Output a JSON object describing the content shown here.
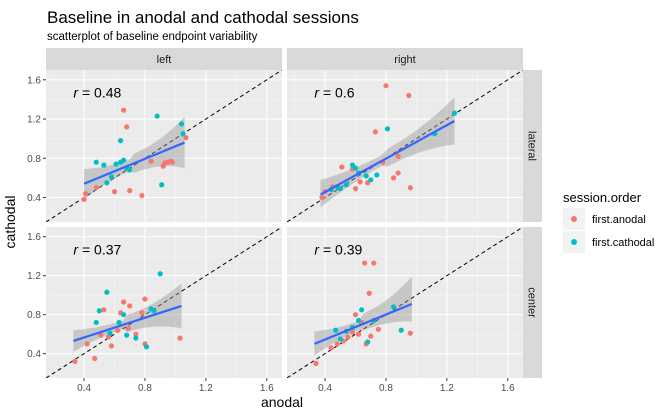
{
  "chart_data": {
    "type": "scatter",
    "title": "Baseline in anodal and cathodal sessions",
    "subtitle": "scatterplot of baseline endpoint variability",
    "xlabel": "anodal",
    "ylabel": "cathodal",
    "xlim": [
      0.15,
      1.7
    ],
    "ylim": [
      0.15,
      1.7
    ],
    "x_ticks": [
      "0.4",
      "0.8",
      "1.2",
      "1.6"
    ],
    "y_ticks": [
      "0.4",
      "0.8",
      "1.2",
      "1.6"
    ],
    "grid": true,
    "reference_line": "y = x (dashed)",
    "smooth": "linear fit with confidence band",
    "legend": {
      "title": "session.order",
      "position": "right",
      "entries": [
        {
          "label": "first.anodal",
          "color": "#F8766D"
        },
        {
          "label": "first.cathodal",
          "color": "#00BFC4"
        }
      ]
    },
    "col_strips": [
      "left",
      "right"
    ],
    "row_strips": [
      "lateral",
      "center"
    ],
    "panels": [
      {
        "col": "left",
        "row": "lateral",
        "r_label": "= 0.48",
        "fit": {
          "x": [
            0.4,
            1.06
          ],
          "y": [
            0.54,
            0.96
          ],
          "se_lo": [
            0.38,
            0.7
          ],
          "se_hi": [
            0.69,
            1.22
          ]
        },
        "points": [
          {
            "g": 0,
            "x": 0.4,
            "y": 0.38
          },
          {
            "g": 0,
            "x": 0.41,
            "y": 0.44
          },
          {
            "g": 0,
            "x": 0.48,
            "y": 0.5
          },
          {
            "g": 0,
            "x": 0.6,
            "y": 0.46
          },
          {
            "g": 0,
            "x": 0.66,
            "y": 1.29
          },
          {
            "g": 0,
            "x": 0.68,
            "y": 1.12
          },
          {
            "g": 0,
            "x": 0.7,
            "y": 0.47
          },
          {
            "g": 0,
            "x": 0.78,
            "y": 0.42
          },
          {
            "g": 0,
            "x": 0.84,
            "y": 0.77
          },
          {
            "g": 0,
            "x": 0.92,
            "y": 0.72
          },
          {
            "g": 0,
            "x": 0.95,
            "y": 0.76
          },
          {
            "g": 0,
            "x": 0.97,
            "y": 0.77
          },
          {
            "g": 0,
            "x": 0.98,
            "y": 0.76
          },
          {
            "g": 0,
            "x": 1.07,
            "y": 1.01
          },
          {
            "g": 0,
            "x": 0.93,
            "y": 0.75
          },
          {
            "g": 1,
            "x": 0.48,
            "y": 0.76
          },
          {
            "g": 1,
            "x": 0.53,
            "y": 0.73
          },
          {
            "g": 1,
            "x": 0.55,
            "y": 0.55
          },
          {
            "g": 1,
            "x": 0.58,
            "y": 0.61
          },
          {
            "g": 1,
            "x": 0.61,
            "y": 0.74
          },
          {
            "g": 1,
            "x": 0.64,
            "y": 0.76
          },
          {
            "g": 1,
            "x": 0.64,
            "y": 0.98
          },
          {
            "g": 1,
            "x": 0.66,
            "y": 0.78
          },
          {
            "g": 1,
            "x": 0.68,
            "y": 0.7
          },
          {
            "g": 1,
            "x": 0.7,
            "y": 0.68
          },
          {
            "g": 1,
            "x": 0.88,
            "y": 1.23
          },
          {
            "g": 1,
            "x": 0.91,
            "y": 0.53
          },
          {
            "g": 1,
            "x": 1.04,
            "y": 1.15
          },
          {
            "g": 1,
            "x": 1.05,
            "y": 1.05
          }
        ]
      },
      {
        "col": "right",
        "row": "lateral",
        "r_label": "= 0.6",
        "fit": {
          "x": [
            0.37,
            1.25
          ],
          "y": [
            0.43,
            1.18
          ],
          "se_lo": [
            0.3,
            0.94
          ],
          "se_hi": [
            0.58,
            1.42
          ]
        },
        "points": [
          {
            "g": 0,
            "x": 0.38,
            "y": 0.4
          },
          {
            "g": 0,
            "x": 0.4,
            "y": 0.46
          },
          {
            "g": 0,
            "x": 0.45,
            "y": 0.51
          },
          {
            "g": 0,
            "x": 0.51,
            "y": 0.71
          },
          {
            "g": 0,
            "x": 0.58,
            "y": 0.69
          },
          {
            "g": 0,
            "x": 0.6,
            "y": 0.49
          },
          {
            "g": 0,
            "x": 0.63,
            "y": 0.56
          },
          {
            "g": 0,
            "x": 0.68,
            "y": 0.55
          },
          {
            "g": 0,
            "x": 0.73,
            "y": 1.07
          },
          {
            "g": 0,
            "x": 0.78,
            "y": 0.76
          },
          {
            "g": 0,
            "x": 0.8,
            "y": 1.54
          },
          {
            "g": 0,
            "x": 0.85,
            "y": 0.6
          },
          {
            "g": 0,
            "x": 0.88,
            "y": 0.82
          },
          {
            "g": 0,
            "x": 0.88,
            "y": 0.65
          },
          {
            "g": 0,
            "x": 0.95,
            "y": 1.44
          },
          {
            "g": 0,
            "x": 0.96,
            "y": 0.5
          },
          {
            "g": 1,
            "x": 0.44,
            "y": 0.48
          },
          {
            "g": 1,
            "x": 0.48,
            "y": 0.51
          },
          {
            "g": 1,
            "x": 0.5,
            "y": 0.49
          },
          {
            "g": 1,
            "x": 0.54,
            "y": 0.53
          },
          {
            "g": 1,
            "x": 0.58,
            "y": 0.73
          },
          {
            "g": 1,
            "x": 0.6,
            "y": 0.7
          },
          {
            "g": 1,
            "x": 0.62,
            "y": 0.65
          },
          {
            "g": 1,
            "x": 0.67,
            "y": 0.62
          },
          {
            "g": 1,
            "x": 0.7,
            "y": 0.58
          },
          {
            "g": 1,
            "x": 0.74,
            "y": 0.63
          },
          {
            "g": 1,
            "x": 0.81,
            "y": 1.1
          },
          {
            "g": 1,
            "x": 1.12,
            "y": 1.05
          },
          {
            "g": 1,
            "x": 1.25,
            "y": 1.26
          }
        ]
      },
      {
        "col": "left",
        "row": "center",
        "r_label": "= 0.37",
        "fit": {
          "x": [
            0.33,
            1.04
          ],
          "y": [
            0.53,
            0.89
          ],
          "se_lo": [
            0.42,
            0.66
          ],
          "se_hi": [
            0.64,
            1.12
          ]
        },
        "points": [
          {
            "g": 0,
            "x": 0.34,
            "y": 0.32
          },
          {
            "g": 0,
            "x": 0.42,
            "y": 0.5
          },
          {
            "g": 0,
            "x": 0.47,
            "y": 0.35
          },
          {
            "g": 0,
            "x": 0.51,
            "y": 0.59
          },
          {
            "g": 0,
            "x": 0.53,
            "y": 0.85
          },
          {
            "g": 0,
            "x": 0.56,
            "y": 0.57
          },
          {
            "g": 0,
            "x": 0.58,
            "y": 0.48
          },
          {
            "g": 0,
            "x": 0.62,
            "y": 0.64
          },
          {
            "g": 0,
            "x": 0.64,
            "y": 0.82
          },
          {
            "g": 0,
            "x": 0.66,
            "y": 0.93
          },
          {
            "g": 0,
            "x": 0.69,
            "y": 0.66
          },
          {
            "g": 0,
            "x": 0.7,
            "y": 0.89
          },
          {
            "g": 0,
            "x": 0.74,
            "y": 0.6
          },
          {
            "g": 0,
            "x": 0.78,
            "y": 0.82
          },
          {
            "g": 0,
            "x": 0.8,
            "y": 0.96
          },
          {
            "g": 0,
            "x": 0.8,
            "y": 0.5
          },
          {
            "g": 0,
            "x": 1.03,
            "y": 0.56
          },
          {
            "g": 1,
            "x": 0.48,
            "y": 0.72
          },
          {
            "g": 1,
            "x": 0.5,
            "y": 0.84
          },
          {
            "g": 1,
            "x": 0.55,
            "y": 1.03
          },
          {
            "g": 1,
            "x": 0.57,
            "y": 0.61
          },
          {
            "g": 1,
            "x": 0.63,
            "y": 0.72
          },
          {
            "g": 1,
            "x": 0.66,
            "y": 0.8
          },
          {
            "g": 1,
            "x": 0.68,
            "y": 0.59
          },
          {
            "g": 1,
            "x": 0.74,
            "y": 0.56
          },
          {
            "g": 1,
            "x": 0.81,
            "y": 0.47
          },
          {
            "g": 1,
            "x": 0.86,
            "y": 0.84
          },
          {
            "g": 1,
            "x": 0.9,
            "y": 1.22
          },
          {
            "g": 1,
            "x": 0.84,
            "y": 0.86
          }
        ]
      },
      {
        "col": "right",
        "row": "center",
        "r_label": "= 0.39",
        "fit": {
          "x": [
            0.33,
            0.97
          ],
          "y": [
            0.5,
            0.91
          ],
          "se_lo": [
            0.38,
            0.73
          ],
          "se_hi": [
            0.63,
            1.19
          ]
        },
        "points": [
          {
            "g": 0,
            "x": 0.34,
            "y": 0.3
          },
          {
            "g": 0,
            "x": 0.44,
            "y": 0.46
          },
          {
            "g": 0,
            "x": 0.48,
            "y": 0.5
          },
          {
            "g": 0,
            "x": 0.52,
            "y": 0.53
          },
          {
            "g": 0,
            "x": 0.55,
            "y": 0.57
          },
          {
            "g": 0,
            "x": 0.58,
            "y": 0.62
          },
          {
            "g": 0,
            "x": 0.6,
            "y": 0.8
          },
          {
            "g": 0,
            "x": 0.62,
            "y": 0.6
          },
          {
            "g": 0,
            "x": 0.64,
            "y": 0.72
          },
          {
            "g": 0,
            "x": 0.66,
            "y": 1.33
          },
          {
            "g": 0,
            "x": 0.67,
            "y": 0.5
          },
          {
            "g": 0,
            "x": 0.69,
            "y": 1.02
          },
          {
            "g": 0,
            "x": 0.7,
            "y": 0.58
          },
          {
            "g": 0,
            "x": 0.72,
            "y": 1.33
          },
          {
            "g": 0,
            "x": 0.75,
            "y": 0.65
          },
          {
            "g": 0,
            "x": 0.96,
            "y": 0.61
          },
          {
            "g": 1,
            "x": 0.47,
            "y": 0.64
          },
          {
            "g": 1,
            "x": 0.5,
            "y": 0.55
          },
          {
            "g": 1,
            "x": 0.54,
            "y": 0.63
          },
          {
            "g": 1,
            "x": 0.58,
            "y": 0.67
          },
          {
            "g": 1,
            "x": 0.62,
            "y": 0.74
          },
          {
            "g": 1,
            "x": 0.64,
            "y": 0.85
          },
          {
            "g": 1,
            "x": 0.68,
            "y": 0.52
          },
          {
            "g": 1,
            "x": 0.72,
            "y": 0.74
          },
          {
            "g": 1,
            "x": 0.85,
            "y": 0.88
          },
          {
            "g": 1,
            "x": 0.9,
            "y": 0.64
          }
        ]
      }
    ]
  }
}
